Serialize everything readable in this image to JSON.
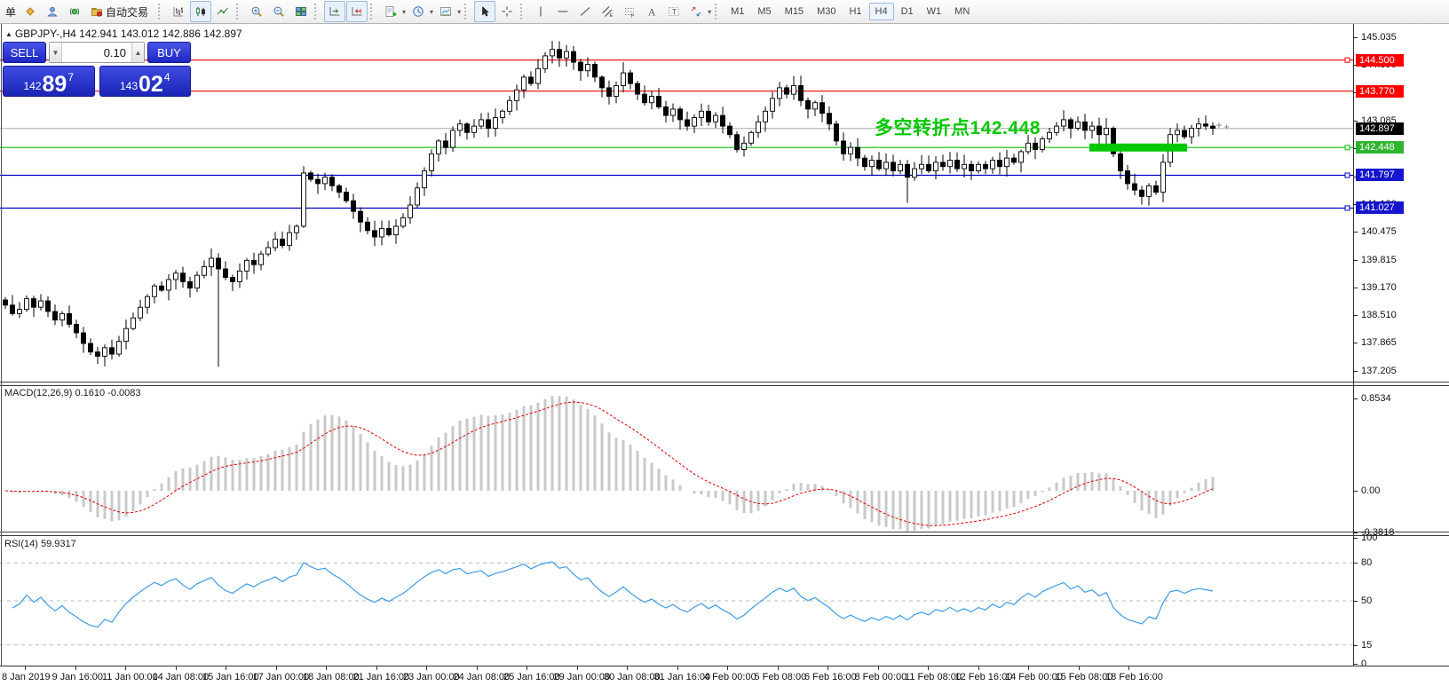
{
  "window": {
    "collapse_glyph": "▲",
    "title": "GBPJPY-,H4  142.941 143.012 142.886 142.897"
  },
  "toolbar": {
    "groups": [
      {
        "name": "file-group",
        "items": [
          {
            "t": "label",
            "text": "单",
            "name": "new-order-label"
          },
          {
            "t": "icon",
            "icon": "order-book",
            "name": "order-book-icon"
          },
          {
            "t": "icon",
            "icon": "profile",
            "name": "profiles-icon"
          },
          {
            "t": "icon",
            "icon": "signal",
            "name": "signals-icon"
          },
          {
            "t": "icontext",
            "icon": "autotrade",
            "text": "自动交易",
            "name": "auto-trading-button"
          }
        ]
      },
      {
        "name": "chart-type-group",
        "items": [
          {
            "t": "icon",
            "icon": "bars",
            "name": "bar-chart-icon"
          },
          {
            "t": "icon",
            "icon": "candles",
            "name": "candlestick-chart-icon",
            "active": true
          },
          {
            "t": "icon",
            "icon": "line",
            "name": "line-chart-icon"
          }
        ]
      },
      {
        "name": "zoom-group",
        "items": [
          {
            "t": "icon",
            "icon": "zoom-in",
            "name": "zoom-in-icon"
          },
          {
            "t": "icon",
            "icon": "zoom-out",
            "name": "zoom-out-icon"
          },
          {
            "t": "icon",
            "icon": "tiles",
            "name": "tile-windows-icon"
          }
        ]
      },
      {
        "name": "scroll-group",
        "items": [
          {
            "t": "icon",
            "icon": "autoscroll",
            "name": "auto-scroll-icon",
            "active": true
          },
          {
            "t": "icon",
            "icon": "shift",
            "name": "chart-shift-icon",
            "active": true
          }
        ]
      },
      {
        "name": "insert-group",
        "items": [
          {
            "t": "icon",
            "icon": "indicators",
            "name": "indicators-icon",
            "dd": true
          },
          {
            "t": "icon",
            "icon": "periods",
            "name": "periods-icon",
            "dd": true
          },
          {
            "t": "icon",
            "icon": "templates",
            "name": "templates-icon",
            "dd": true
          }
        ]
      },
      {
        "name": "pointer-group",
        "items": [
          {
            "t": "icon",
            "icon": "cursor",
            "name": "cursor-icon",
            "active": true
          },
          {
            "t": "icon",
            "icon": "crosshair",
            "name": "crosshair-icon"
          }
        ]
      },
      {
        "name": "draw-group",
        "items": [
          {
            "t": "icon",
            "icon": "vline",
            "name": "vertical-line-tool-icon"
          },
          {
            "t": "icon",
            "icon": "hline",
            "name": "horizontal-line-tool-icon"
          },
          {
            "t": "icon",
            "icon": "tline",
            "name": "trend-line-tool-icon"
          },
          {
            "t": "icon",
            "icon": "channel",
            "name": "equidistant-channel-icon"
          },
          {
            "t": "icon",
            "icon": "fibo",
            "name": "fibonacci-tool-icon"
          },
          {
            "t": "icon",
            "icon": "text",
            "name": "text-tool-icon"
          },
          {
            "t": "icon",
            "icon": "label",
            "name": "text-label-tool-icon"
          },
          {
            "t": "icon",
            "icon": "arrows",
            "name": "arrows-tool-icon",
            "dd": true
          }
        ]
      },
      {
        "name": "timeframe-group",
        "items": [
          {
            "t": "tf",
            "text": "M1"
          },
          {
            "t": "tf",
            "text": "M5"
          },
          {
            "t": "tf",
            "text": "M15"
          },
          {
            "t": "tf",
            "text": "M30"
          },
          {
            "t": "tf",
            "text": "H1"
          },
          {
            "t": "tf",
            "text": "H4",
            "active": true
          },
          {
            "t": "tf",
            "text": "D1"
          },
          {
            "t": "tf",
            "text": "W1"
          },
          {
            "t": "tf",
            "text": "MN"
          }
        ]
      }
    ]
  },
  "trade_panel": {
    "sell_label": "SELL",
    "buy_label": "BUY",
    "volume": "0.10",
    "decrease_glyph": "▼",
    "increase_glyph": "▲",
    "sell_price": {
      "prefix": "142",
      "big": "89",
      "sup": "7"
    },
    "buy_price": {
      "prefix": "143",
      "big": "02",
      "sup": "4"
    }
  },
  "chart_data": {
    "main": {
      "type": "candlestick",
      "symbol": "GBPJPY-",
      "timeframe": "H4",
      "price_axis": {
        "top_price": 145.035,
        "bottom_price": 137.205,
        "ticks": [
          "145.035",
          "144.390",
          "143.745",
          "143.085",
          "142.425",
          "141.765",
          "141.120",
          "140.475",
          "139.815",
          "139.170",
          "138.510",
          "137.865",
          "137.205"
        ]
      },
      "levels": [
        {
          "price": 144.5,
          "label": "144.500",
          "color": "#ee0000",
          "badge_bg": "#ff0000",
          "marker": true
        },
        {
          "price": 143.77,
          "label": "143.770",
          "color": "#ee0000",
          "badge_bg": "#ff0000",
          "marker": false
        },
        {
          "price": 142.897,
          "label": "142.897",
          "color": "#aaaaaa",
          "badge_bg": "#000000",
          "current": true
        },
        {
          "price": 142.448,
          "label": "142.448",
          "color": "#00c000",
          "badge_bg": "#2fb42f",
          "marker": true
        },
        {
          "price": 141.797,
          "label": "141.797",
          "color": "#0000c8",
          "badge_bg": "#1515cd",
          "marker": true
        },
        {
          "price": 141.027,
          "label": "141.027",
          "color": "#0000c8",
          "badge_bg": "#1515cd",
          "marker": true
        }
      ],
      "closes": [
        138.75,
        138.55,
        138.65,
        138.9,
        138.7,
        138.85,
        138.6,
        138.4,
        138.55,
        138.3,
        138.1,
        137.85,
        137.65,
        137.55,
        137.75,
        137.6,
        137.9,
        138.2,
        138.45,
        138.7,
        138.95,
        139.2,
        139.1,
        139.35,
        139.5,
        139.3,
        139.15,
        139.45,
        139.65,
        139.85,
        139.6,
        139.4,
        139.3,
        139.55,
        139.8,
        139.7,
        139.95,
        140.1,
        140.3,
        140.15,
        140.45,
        140.6,
        141.85,
        141.7,
        141.6,
        141.75,
        141.55,
        141.4,
        141.2,
        140.95,
        140.7,
        140.5,
        140.35,
        140.55,
        140.4,
        140.6,
        140.8,
        141.1,
        141.5,
        141.9,
        142.3,
        142.6,
        142.45,
        142.85,
        143.0,
        142.8,
        142.95,
        143.1,
        142.9,
        143.15,
        143.3,
        143.55,
        143.8,
        144.1,
        143.95,
        144.3,
        144.6,
        144.75,
        144.55,
        144.7,
        144.45,
        144.25,
        144.4,
        144.1,
        143.85,
        143.65,
        143.9,
        144.2,
        143.95,
        143.7,
        143.5,
        143.65,
        143.4,
        143.2,
        143.35,
        143.1,
        142.95,
        143.15,
        143.3,
        143.05,
        143.2,
        142.95,
        142.75,
        142.4,
        142.55,
        142.8,
        143.05,
        143.3,
        143.6,
        143.85,
        143.7,
        143.9,
        143.55,
        143.35,
        143.5,
        143.25,
        143.0,
        142.6,
        142.3,
        142.45,
        142.2,
        142.0,
        142.15,
        141.95,
        142.1,
        141.9,
        142.05,
        141.75,
        141.95,
        142.05,
        141.9,
        142.1,
        142.0,
        142.15,
        141.95,
        142.05,
        141.9,
        142.05,
        141.95,
        142.15,
        142.0,
        142.2,
        142.1,
        142.35,
        142.55,
        142.4,
        142.65,
        142.8,
        142.95,
        143.1,
        142.9,
        143.05,
        142.85,
        142.95,
        142.75,
        142.9,
        142.3,
        141.9,
        141.6,
        141.45,
        141.3,
        141.55,
        141.4,
        142.1,
        142.75,
        142.85,
        142.7,
        142.9,
        143.0,
        142.95,
        142.897
      ],
      "overrides": {
        "30": {
          "low": 137.3
        },
        "77": {
          "high": 144.95
        },
        "87": {
          "high": 144.45
        },
        "127": {
          "low": 141.15
        }
      },
      "highlight": {
        "start_index": 153,
        "end_index": 166,
        "price": 142.448,
        "color": "#00c800",
        "thickness": 9
      },
      "annotation": {
        "text": "多空转折点142.448",
        "color": "#00c800"
      }
    },
    "macd": {
      "type": "macd-histogram",
      "label": "MACD(12,26,9) 0.1610 -0.0083",
      "params": [
        12,
        26,
        9
      ],
      "main_value": 0.161,
      "signal_value": -0.0083,
      "axis_ticks": [
        {
          "text": "0.8534",
          "value": 0.8534
        },
        {
          "text": "0.00",
          "value": 0.0
        },
        {
          "text": "-0.3818",
          "value": -0.3818
        }
      ],
      "bar_color": "#c9c9c9",
      "signal_color": "#e00000"
    },
    "rsi": {
      "type": "line",
      "label": "RSI(14) 59.9317",
      "period": 14,
      "value": 59.9317,
      "axis_ticks": [
        {
          "text": "100",
          "value": 100
        },
        {
          "text": "80",
          "value": 80
        },
        {
          "text": "50",
          "value": 50
        },
        {
          "text": "15",
          "value": 15
        },
        {
          "text": "0",
          "value": 0
        }
      ],
      "level_lines": [
        80,
        50,
        15
      ],
      "line_color": "#3d9be9"
    }
  },
  "time_axis": {
    "labels": [
      "8 Jan 2019",
      "9 Jan 16:00",
      "11 Jan 00:00",
      "14 Jan 08:00",
      "15 Jan 16:00",
      "17 Jan 00:00",
      "18 Jan 08:00",
      "21 Jan 16:00",
      "23 Jan 00:00",
      "24 Jan 08:00",
      "25 Jan 16:00",
      "29 Jan 00:00",
      "30 Jan 08:00",
      "31 Jan 16:00",
      "4 Feb 00:00",
      "5 Feb 08:00",
      "6 Feb 16:00",
      "8 Feb 00:00",
      "11 Feb 08:00",
      "12 Feb 16:00",
      "14 Feb 00:00",
      "15 Feb 08:00",
      "18 Feb 16:00"
    ]
  }
}
